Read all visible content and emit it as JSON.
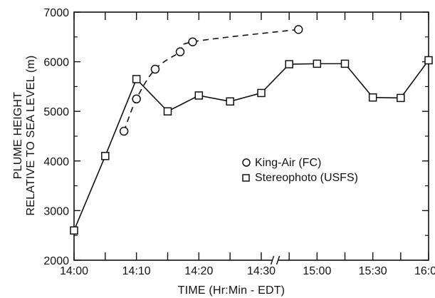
{
  "chart_data": {
    "type": "line",
    "title": "",
    "xlabel": "TIME (Hr:Min - EDT)",
    "ylabel_lines": [
      "PLUME HEIGHT",
      "RELATIVE TO SEA LEVEL (m)"
    ],
    "ylim": [
      2000,
      7000
    ],
    "y_ticks": [
      2000,
      3000,
      4000,
      5000,
      6000,
      7000
    ],
    "x_ticks": [
      "14:00",
      "14:10",
      "14:20",
      "14:30",
      "15:00",
      "15:30",
      "16:00"
    ],
    "x_axis_note": "broken axis between 14:30 and 15:00",
    "grid": false,
    "legend_position": "center-right",
    "series": [
      {
        "name": "King-Air (FC)",
        "marker": "circle",
        "line_style": "dashed",
        "color": "#111111",
        "points": [
          {
            "x": "14:08",
            "y": 4600
          },
          {
            "x": "14:10",
            "y": 5250
          },
          {
            "x": "14:13",
            "y": 5850
          },
          {
            "x": "14:17",
            "y": 6200
          },
          {
            "x": "14:19",
            "y": 6400
          },
          {
            "x": "14:50",
            "y": 6650
          }
        ]
      },
      {
        "name": "Stereophoto (USFS)",
        "marker": "square",
        "line_style": "solid",
        "color": "#111111",
        "points": [
          {
            "x": "14:00",
            "y": 2600
          },
          {
            "x": "14:05",
            "y": 4100
          },
          {
            "x": "14:10",
            "y": 5650
          },
          {
            "x": "14:15",
            "y": 5000
          },
          {
            "x": "14:20",
            "y": 5320
          },
          {
            "x": "14:25",
            "y": 5200
          },
          {
            "x": "14:30",
            "y": 5370
          },
          {
            "x": "14:45",
            "y": 5950
          },
          {
            "x": "15:00",
            "y": 5960
          },
          {
            "x": "15:15",
            "y": 5960
          },
          {
            "x": "15:30",
            "y": 5280
          },
          {
            "x": "15:45",
            "y": 5270
          },
          {
            "x": "16:00",
            "y": 6030
          }
        ]
      }
    ]
  }
}
